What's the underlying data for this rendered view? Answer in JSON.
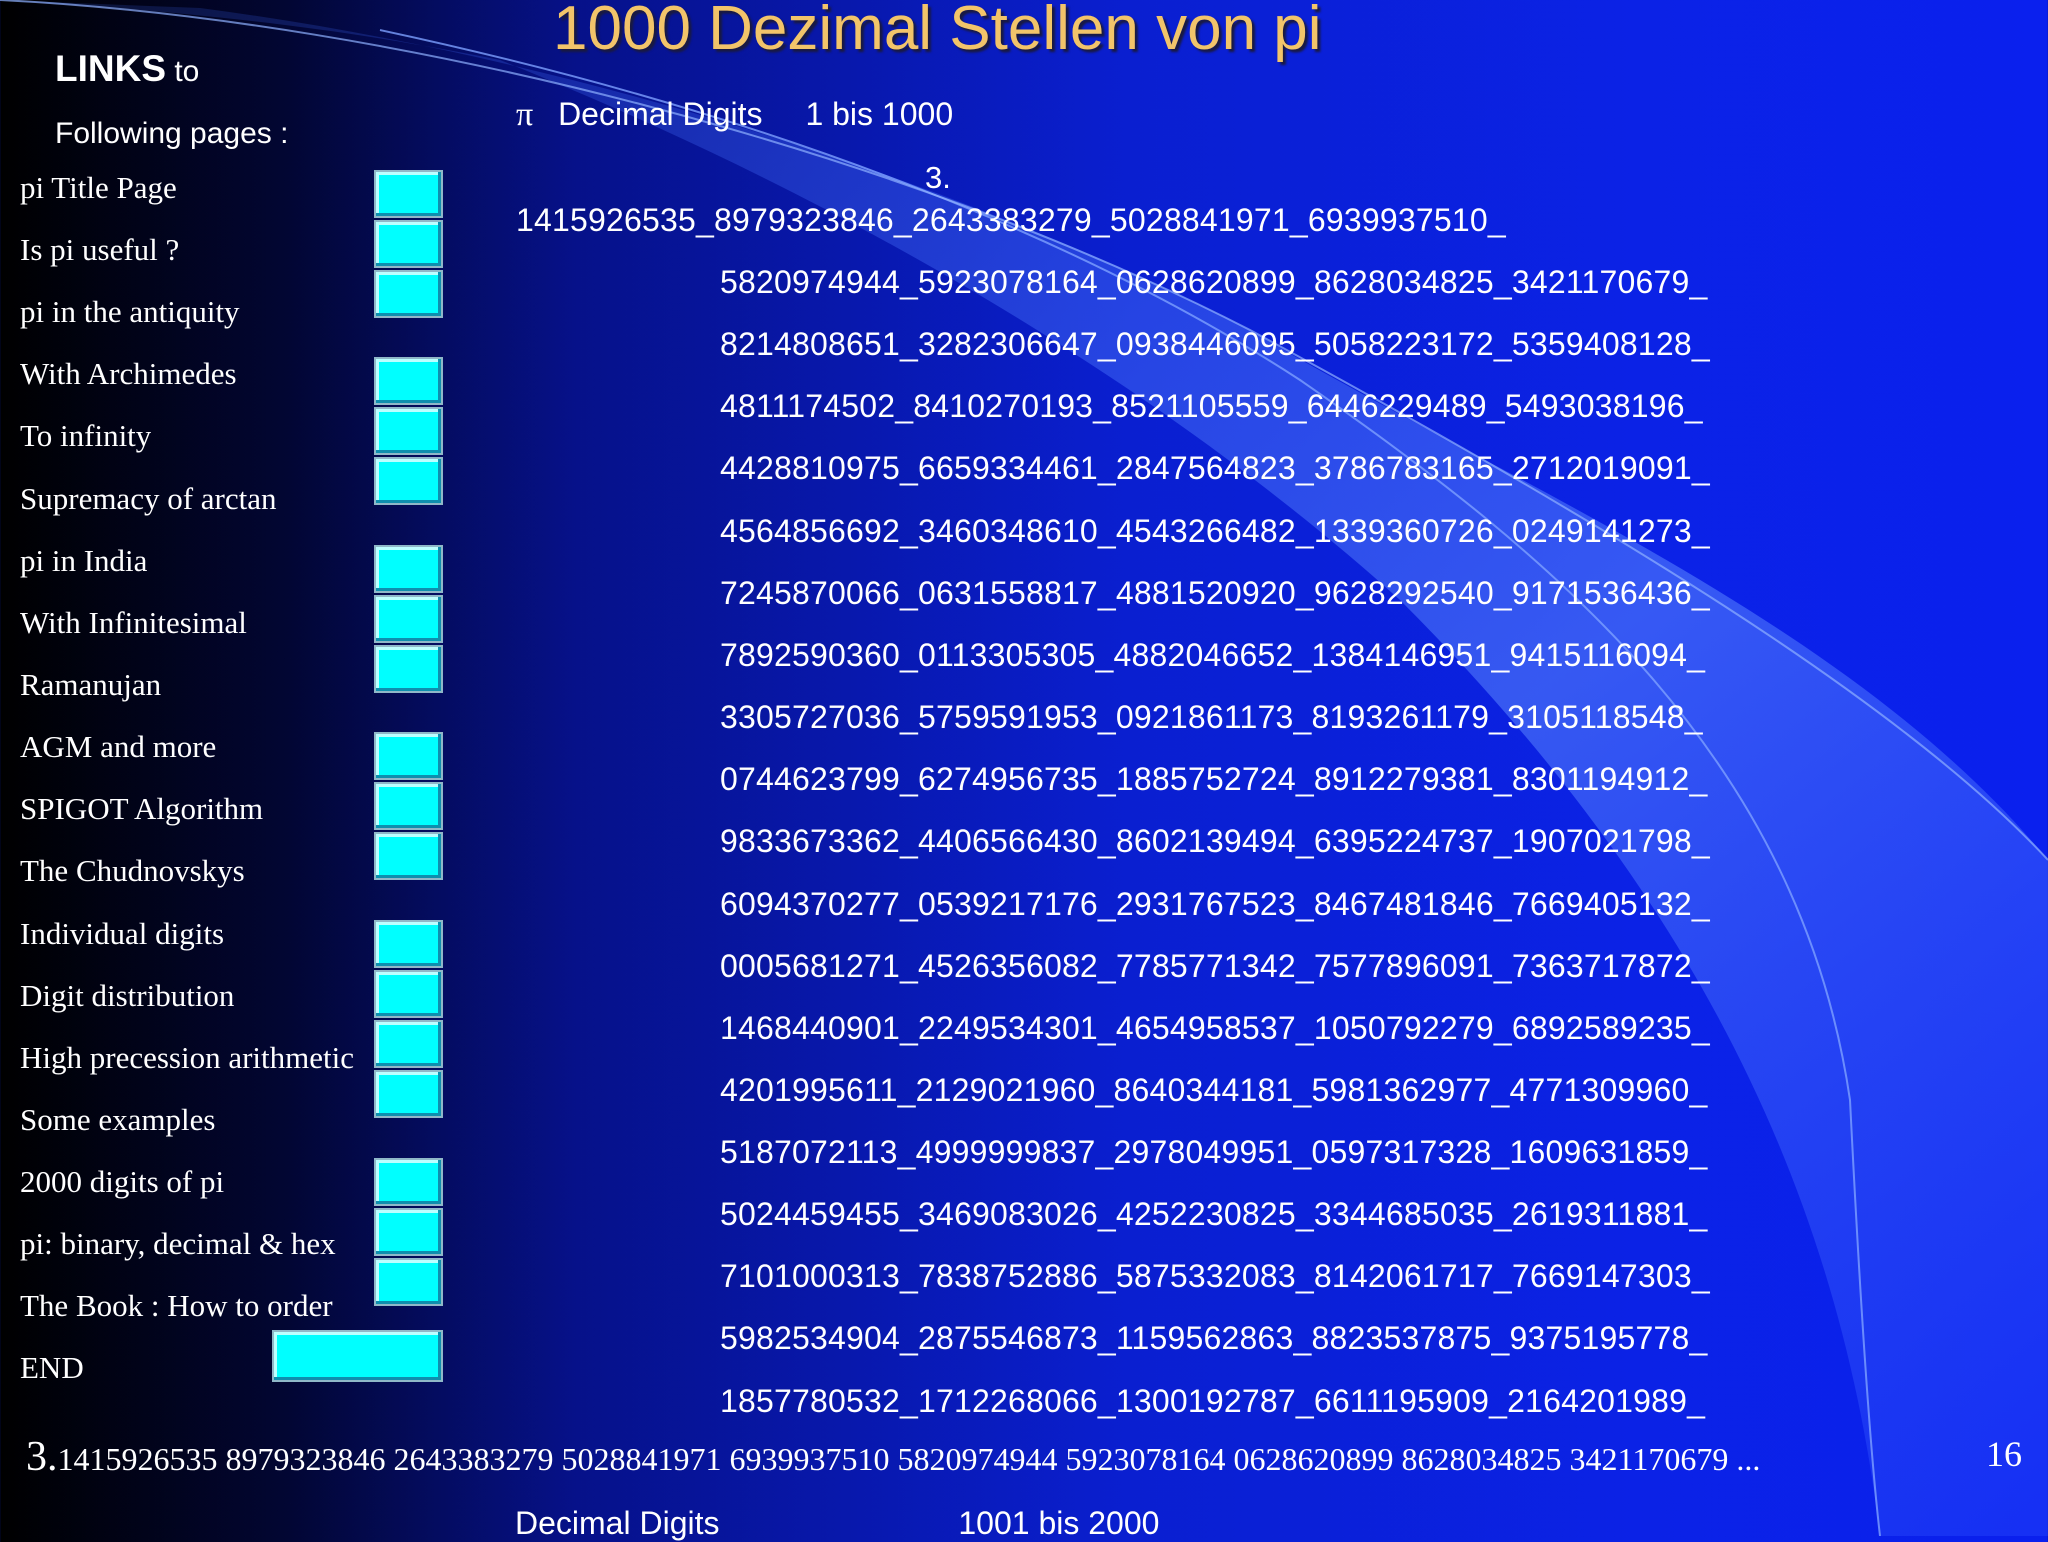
{
  "title": "1000 Dezimal Stellen von pi",
  "sidebar": {
    "heading_bold": "LINKS",
    "heading_rest": "to",
    "heading_line2": "Following pages :",
    "items": [
      "pi   Title Page",
      "Is pi useful ?",
      "pi in the antiquity",
      "With Archimedes",
      "To infinity",
      "Supremacy of arctan",
      "pi in India",
      "With Infinitesimal",
      "Ramanujan",
      "AGM and more",
      "SPIGOT Algorithm",
      "The Chudnovskys",
      "Individual digits",
      "Digit distribution",
      "High precession arithmetic",
      "Some examples",
      "2000 digits of pi",
      "pi: binary, decimal & hex",
      "The Book : How to order",
      "END"
    ]
  },
  "main": {
    "pi_symbol": "π",
    "subheading_label": "Decimal Digits",
    "subheading_range": "1 bis  1000",
    "integer_part": "3.",
    "digit_lines": [
      "1415926535_8979323846_2643383279_5028841971_6939937510_",
      "5820974944_5923078164_0628620899_8628034825_3421170679_",
      "8214808651_3282306647_0938446095_5058223172_5359408128_",
      "4811174502_8410270193_8521105559_6446229489_5493038196_",
      "4428810975_6659334461_2847564823_3786783165_2712019091_",
      "4564856692_3460348610_4543266482_1339360726_0249141273_",
      "7245870066_0631558817_4881520920_9628292540_9171536436_",
      "7892590360_0113305305_4882046652_1384146951_9415116094_",
      "3305727036_5759591953_0921861173_8193261179_3105118548_",
      "0744623799_6274956735_1885752724_8912279381_8301194912_",
      "9833673362_4406566430_8602139494_6395224737_1907021798_",
      "6094370277_0539217176_2931767523_8467481846_7669405132_",
      "0005681271_4526356082_7785771342_7577896091_7363717872_",
      "1468440901_2249534301_4654958537_1050792279_6892589235_",
      "4201995611_2129021960_8640344181_5981362977_4771309960_",
      "5187072113_4999999837_2978049951_0597317328_1609631859_",
      "5024459455_3469083026_4252230825_3344685035_2619311881_",
      "7101000313_7838752886_5875332083_8142061717_7669147303_",
      "5982534904_2875546873_1159562863_8823537875_9375195778_",
      "1857780532_1712268066_1300192787_6611195909_2164201989_"
    ]
  },
  "footer": {
    "big_three": "3.",
    "digits": "1415926535 8979323846 2643383279 5028841971 6939937510 5820974944 5923078164 0628620899 8628034825 3421170679  ...",
    "page_number": "16",
    "next_label": "Decimal Digits",
    "next_range": "1001  bis 2000"
  }
}
